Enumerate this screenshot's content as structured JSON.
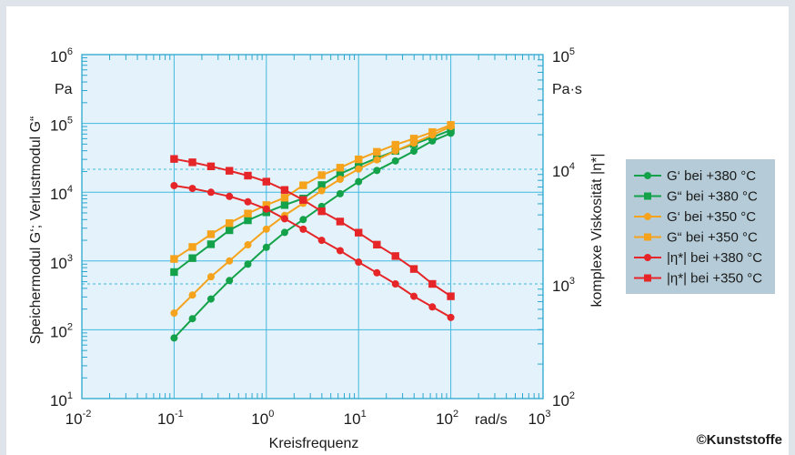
{
  "chart_data": {
    "type": "line",
    "x_scale": "log",
    "y_left_scale": "log",
    "y_right_scale": "log",
    "xlabel": "Kreisfrequenz",
    "x_unit": "rad/s",
    "ylabel_left": "Speichermodul G‘; Verlustmodul G“",
    "y_left_unit": "Pa",
    "ylabel_right": "komplexe Viskosität |η*|",
    "y_right_unit": "Pa·s",
    "xlim": [
      0.01,
      1000
    ],
    "ylim_left": [
      10,
      1000000
    ],
    "ylim_right": [
      100,
      100000
    ],
    "x_ticks": [
      {
        "base": "10",
        "exp": "-2"
      },
      {
        "base": "10",
        "exp": "-1"
      },
      {
        "base": "10",
        "exp": "0"
      },
      {
        "base": "10",
        "exp": "1"
      },
      {
        "base": "10",
        "exp": "2"
      },
      {
        "base": "10",
        "exp": "3"
      }
    ],
    "y_left_ticks": [
      {
        "base": "10",
        "exp": "1"
      },
      {
        "base": "10",
        "exp": "2"
      },
      {
        "base": "10",
        "exp": "3"
      },
      {
        "base": "10",
        "exp": "4"
      },
      {
        "base": "10",
        "exp": "5"
      },
      {
        "base": "10",
        "exp": "6"
      }
    ],
    "y_right_ticks": [
      {
        "base": "10",
        "exp": "2"
      },
      {
        "base": "10",
        "exp": "3"
      },
      {
        "base": "10",
        "exp": "4"
      },
      {
        "base": "10",
        "exp": "5"
      }
    ],
    "grid": true,
    "legend_position": "right",
    "x": [
      0.1,
      0.158,
      0.251,
      0.398,
      0.631,
      1.0,
      1.58,
      2.51,
      3.98,
      6.31,
      10.0,
      15.8,
      25.1,
      39.8,
      63.1,
      100.0
    ],
    "series": [
      {
        "name": "G‘ bei +380 °C",
        "axis": "left",
        "marker": "circle",
        "color": "#13a24a",
        "values": [
          76,
          145,
          280,
          520,
          900,
          1580,
          2600,
          4000,
          6200,
          9500,
          14200,
          20700,
          28500,
          39500,
          55500,
          72000
        ]
      },
      {
        "name": "G“ bei +380 °C",
        "axis": "left",
        "marker": "square",
        "color": "#13a24a",
        "values": [
          690,
          1100,
          1750,
          2800,
          3900,
          5100,
          6500,
          8100,
          12700,
          18500,
          24300,
          31200,
          39800,
          50000,
          63000,
          80000
        ]
      },
      {
        "name": "G‘ bei +350 °C",
        "axis": "left",
        "marker": "circle",
        "color": "#f5a21c",
        "values": [
          175,
          320,
          590,
          1000,
          1720,
          2900,
          4600,
          6900,
          10500,
          15400,
          21700,
          29500,
          39800,
          51800,
          67800,
          90000
        ]
      },
      {
        "name": "G“ bei +350 °C",
        "axis": "left",
        "marker": "square",
        "color": "#f5a21c",
        "values": [
          1070,
          1600,
          2450,
          3550,
          4900,
          6500,
          8300,
          12600,
          17700,
          22700,
          30000,
          38600,
          48900,
          60100,
          74700,
          95000
        ]
      },
      {
        "name": "|η*| bei +380 °C",
        "axis": "right",
        "marker": "circle",
        "color": "#e52528",
        "values": [
          7200,
          6800,
          6300,
          5800,
          5200,
          4500,
          3700,
          3000,
          2400,
          1950,
          1550,
          1250,
          1000,
          780,
          630,
          510
        ]
      },
      {
        "name": "|η*| bei +350 °C",
        "axis": "right",
        "marker": "square",
        "color": "#e52528",
        "values": [
          12300,
          11500,
          10600,
          9700,
          8800,
          7800,
          6600,
          5400,
          4300,
          3500,
          2800,
          2200,
          1750,
          1350,
          1000,
          780
        ]
      }
    ]
  },
  "credit": "©Kunststoffe"
}
